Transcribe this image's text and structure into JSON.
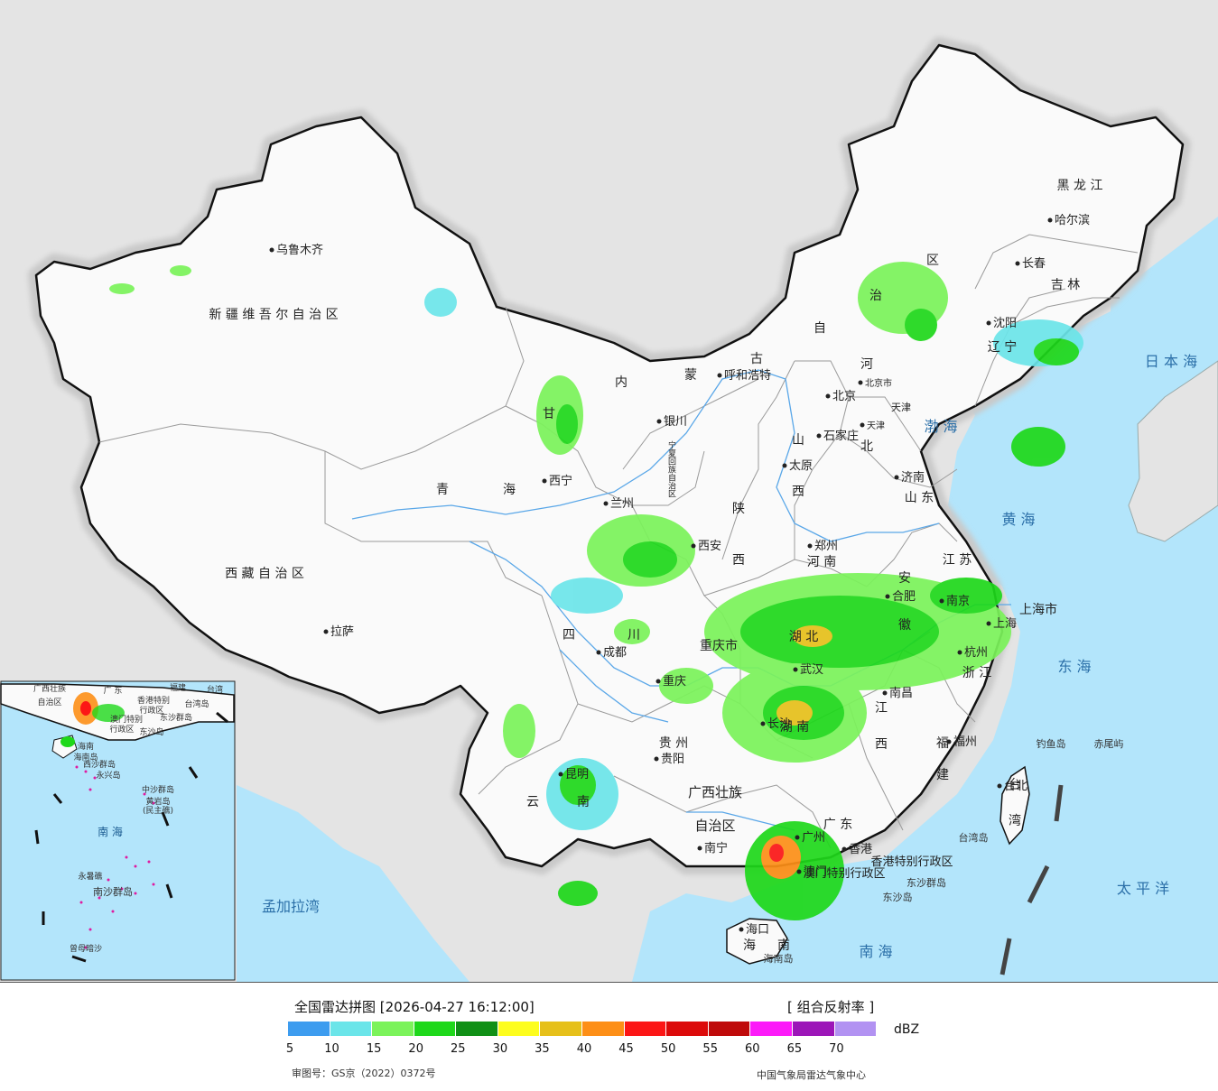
{
  "map": {
    "colors": {
      "sea": "#b3e5fb",
      "land_outside": "#e4e4e4",
      "china": "#fafafa",
      "border": "#111111",
      "province": "#9a9a9a",
      "river": "#5aa7e8",
      "capital_dot": "#222222"
    },
    "provinces": [
      {
        "id": "xinjiang",
        "text": "新 疆 维 吾 尔 自 治 区"
      },
      {
        "id": "xizang",
        "text": "西 藏 自 治 区"
      },
      {
        "id": "qinghai_1",
        "text": "青"
      },
      {
        "id": "qinghai_2",
        "text": "海"
      },
      {
        "id": "gansu",
        "text": "甘"
      },
      {
        "id": "sichuan_1",
        "text": "四"
      },
      {
        "id": "sichuan_2",
        "text": "川"
      },
      {
        "id": "nmg_1",
        "text": "内"
      },
      {
        "id": "nmg_2",
        "text": "蒙"
      },
      {
        "id": "nmg_3",
        "text": "古"
      },
      {
        "id": "nmg_4",
        "text": "自"
      },
      {
        "id": "nmg_5",
        "text": "治"
      },
      {
        "id": "nmg_6",
        "text": "区"
      },
      {
        "id": "heilongjiang",
        "text": "黑 龙 江"
      },
      {
        "id": "jilin",
        "text": "吉 林"
      },
      {
        "id": "liaoning",
        "text": "辽 宁"
      },
      {
        "id": "hebei_1",
        "text": "河"
      },
      {
        "id": "hebei_2",
        "text": "北"
      },
      {
        "id": "shanxi_1",
        "text": "山"
      },
      {
        "id": "shanxi_2",
        "text": "西"
      },
      {
        "id": "shaanxi_1",
        "text": "陕"
      },
      {
        "id": "shaanxi_2",
        "text": "西"
      },
      {
        "id": "shandong",
        "text": "山 东"
      },
      {
        "id": "henan",
        "text": "河 南"
      },
      {
        "id": "jiangsu",
        "text": "江 苏"
      },
      {
        "id": "anhui_1",
        "text": "安"
      },
      {
        "id": "anhui_2",
        "text": "徽"
      },
      {
        "id": "shanghai",
        "text": "上海市"
      },
      {
        "id": "hubei",
        "text": "湖 北"
      },
      {
        "id": "chongqing",
        "text": "重庆市"
      },
      {
        "id": "zhejiang",
        "text": "浙 江"
      },
      {
        "id": "jiangxi_1",
        "text": "江"
      },
      {
        "id": "jiangxi_2",
        "text": "西"
      },
      {
        "id": "hunan",
        "text": "湖 南"
      },
      {
        "id": "guizhou",
        "text": "贵 州"
      },
      {
        "id": "fujian_1",
        "text": "福"
      },
      {
        "id": "fujian_2",
        "text": "建"
      },
      {
        "id": "yunnan_1",
        "text": "云"
      },
      {
        "id": "yunnan_2",
        "text": "南"
      },
      {
        "id": "guangxi_1",
        "text": "广西壮族"
      },
      {
        "id": "guangxi_2",
        "text": "自治区"
      },
      {
        "id": "guangdong",
        "text": "广 东"
      },
      {
        "id": "hainan_1",
        "text": "海"
      },
      {
        "id": "hainan_2",
        "text": "南"
      },
      {
        "id": "taiwan_1",
        "text": "台"
      },
      {
        "id": "taiwan_2",
        "text": "湾"
      },
      {
        "id": "ningxia",
        "text": "宁夏回族自治区"
      },
      {
        "id": "tianjin",
        "text": "天津"
      },
      {
        "id": "hk_sar",
        "text": "香港特别行政区"
      },
      {
        "id": "macao_sar",
        "text": "澳门特别行政区"
      }
    ],
    "cities": [
      {
        "id": "urumqi",
        "text": "乌鲁木齐"
      },
      {
        "id": "lhasa",
        "text": "拉萨"
      },
      {
        "id": "xining",
        "text": "西宁"
      },
      {
        "id": "lanzhou",
        "text": "兰州"
      },
      {
        "id": "yinchuan",
        "text": "银川"
      },
      {
        "id": "hohhot",
        "text": "呼和浩特"
      },
      {
        "id": "beijing",
        "text": "北京"
      },
      {
        "id": "beijing_city",
        "text": "北京市"
      },
      {
        "id": "tianjin_city",
        "text": "天津"
      },
      {
        "id": "shijiazhuang",
        "text": "石家庄"
      },
      {
        "id": "taiyuan",
        "text": "太原"
      },
      {
        "id": "jinan",
        "text": "济南"
      },
      {
        "id": "zhengzhou",
        "text": "郑州"
      },
      {
        "id": "xian",
        "text": "西安"
      },
      {
        "id": "chengdu",
        "text": "成都"
      },
      {
        "id": "chongqing_city",
        "text": "重庆"
      },
      {
        "id": "wuhan",
        "text": "武汉"
      },
      {
        "id": "hefei",
        "text": "合肥"
      },
      {
        "id": "nanjing",
        "text": "南京"
      },
      {
        "id": "shanghai_city",
        "text": "上海"
      },
      {
        "id": "hangzhou",
        "text": "杭州"
      },
      {
        "id": "nanchang",
        "text": "南昌"
      },
      {
        "id": "changsha",
        "text": "长沙"
      },
      {
        "id": "fuzhou",
        "text": "福州"
      },
      {
        "id": "guiyang",
        "text": "贵阳"
      },
      {
        "id": "kunming",
        "text": "昆明"
      },
      {
        "id": "nanning",
        "text": "南宁"
      },
      {
        "id": "guangzhou",
        "text": "广州"
      },
      {
        "id": "hongkong",
        "text": "香港"
      },
      {
        "id": "macao",
        "text": "澳门"
      },
      {
        "id": "haikou",
        "text": "海口"
      },
      {
        "id": "taipei",
        "text": "台北"
      },
      {
        "id": "shenyang",
        "text": "沈阳"
      },
      {
        "id": "changchun",
        "text": "长春"
      },
      {
        "id": "harbin",
        "text": "哈尔滨"
      }
    ],
    "seas": [
      {
        "id": "japan_sea",
        "text": "日 本 海"
      },
      {
        "id": "bohai",
        "text": "渤 海"
      },
      {
        "id": "yellow_sea",
        "text": "黄 海"
      },
      {
        "id": "east_sea",
        "text": "东 海"
      },
      {
        "id": "pacific",
        "text": "太 平 洋"
      },
      {
        "id": "south_sea",
        "text": "南 海"
      },
      {
        "id": "bengal",
        "text": "孟加拉湾"
      }
    ],
    "islands": [
      {
        "id": "diaoyu",
        "text": "钓鱼岛"
      },
      {
        "id": "chiwei",
        "text": "赤尾屿"
      },
      {
        "id": "taiwan_island",
        "text": "台湾岛"
      },
      {
        "id": "dongsha_islands",
        "text": "东沙群岛"
      },
      {
        "id": "dongsha_island",
        "text": "东沙岛"
      },
      {
        "id": "hainan_island",
        "text": "海南岛"
      }
    ],
    "inset": {
      "labels": [
        {
          "id": "i_gx",
          "text": "广西壮族"
        },
        {
          "id": "i_gx2",
          "text": "自治区"
        },
        {
          "id": "i_gd",
          "text": "广  东"
        },
        {
          "id": "i_fj",
          "text": "福建"
        },
        {
          "id": "i_tw",
          "text": "台湾"
        },
        {
          "id": "i_hk",
          "text": "香港特别"
        },
        {
          "id": "i_hk2",
          "text": "行政区"
        },
        {
          "id": "i_mo",
          "text": "澳门特别"
        },
        {
          "id": "i_mo2",
          "text": "行政区"
        },
        {
          "id": "i_twisland",
          "text": "台湾岛"
        },
        {
          "id": "i_dsqd",
          "text": "东沙群岛"
        },
        {
          "id": "i_dsd",
          "text": "东沙岛"
        },
        {
          "id": "i_hn",
          "text": "海南"
        },
        {
          "id": "i_hnd",
          "text": "海南岛"
        },
        {
          "id": "i_xs",
          "text": "西沙群岛"
        },
        {
          "id": "i_yxd",
          "text": "永兴岛"
        },
        {
          "id": "i_zs",
          "text": "中沙群岛"
        },
        {
          "id": "i_hyd",
          "text": "黄岩岛"
        },
        {
          "id": "i_mbd",
          "text": "(民主礁)"
        },
        {
          "id": "i_nh",
          "text": "南    海"
        },
        {
          "id": "i_yss",
          "text": "永暑礁"
        },
        {
          "id": "i_ns",
          "text": "南沙群岛"
        },
        {
          "id": "i_zmas",
          "text": "曾母暗沙"
        }
      ]
    }
  },
  "legend": {
    "title": "全国雷达拼图 [2026-04-27 16:12:00]",
    "product": "[ 组合反射率 ]",
    "unit": "dBZ",
    "colors": [
      "#3d9cef",
      "#6be5e9",
      "#7bf35a",
      "#1ed81a",
      "#109016",
      "#fdfd1e",
      "#e6c01a",
      "#fd8f17",
      "#fc1616",
      "#dc0a0a",
      "#bf0a0a",
      "#fc1af9",
      "#9c16b8",
      "#b292f2"
    ],
    "ticks": [
      "5",
      "10",
      "15",
      "20",
      "25",
      "30",
      "35",
      "40",
      "45",
      "50",
      "55",
      "60",
      "65",
      "70"
    ],
    "review_number": "审图号：GS京（2022）0372号",
    "source": "中国气象局雷达气象中心"
  }
}
